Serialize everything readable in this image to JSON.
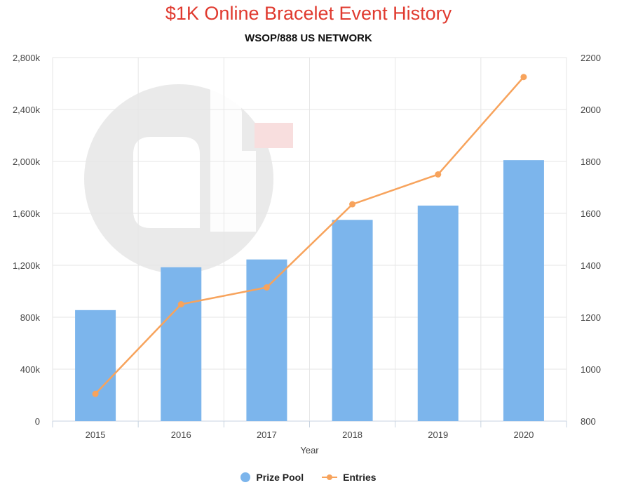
{
  "chart_data": {
    "type": "bar",
    "title": "$1K Online Bracelet Event History",
    "subtitle": "WSOP/888 US NETWORK",
    "xlabel": "Year",
    "categories": [
      "2015",
      "2016",
      "2017",
      "2018",
      "2019",
      "2020"
    ],
    "series": [
      {
        "name": "Prize Pool",
        "type": "bar",
        "axis": "left",
        "color": "#7cb5ec",
        "values": [
          855000,
          1185000,
          1245000,
          1550000,
          1660000,
          2010000
        ]
      },
      {
        "name": "Entries",
        "type": "line",
        "axis": "right",
        "color": "#f7a35c",
        "values": [
          905,
          1250,
          1315,
          1635,
          1750,
          2125
        ]
      }
    ],
    "left_axis": {
      "ylim": [
        0,
        2800000
      ],
      "ticks": [
        0,
        400000,
        800000,
        1200000,
        1600000,
        2000000,
        2400000,
        2800000
      ],
      "tick_labels": [
        "0",
        "400k",
        "800k",
        "1,200k",
        "1,600k",
        "2,000k",
        "2,400k",
        "2,800k"
      ]
    },
    "right_axis": {
      "ylim": [
        800,
        2200
      ],
      "ticks": [
        800,
        1000,
        1200,
        1400,
        1600,
        1800,
        2000,
        2200
      ],
      "tick_labels": [
        "800",
        "1000",
        "1200",
        "1400",
        "1600",
        "1800",
        "2000",
        "2200"
      ]
    },
    "grid": true,
    "legend_position": "bottom-center"
  }
}
